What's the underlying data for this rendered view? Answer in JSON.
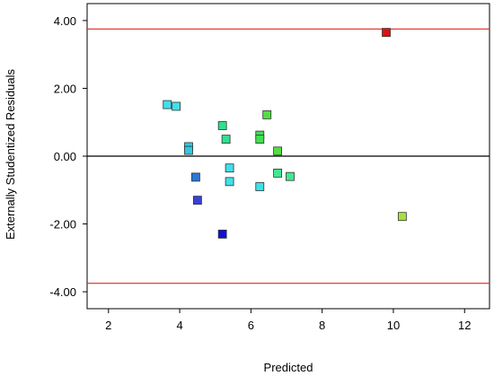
{
  "chart_data": {
    "type": "scatter",
    "title": "",
    "xlabel": "Predicted",
    "ylabel": "Externally Studentized Residuals",
    "xlim": [
      1.4,
      12.7
    ],
    "ylim": [
      -4.5,
      4.5
    ],
    "xticks": [
      2,
      4,
      6,
      8,
      10,
      12
    ],
    "xtick_labels": [
      "2",
      "4",
      "6",
      "8",
      "10",
      "12"
    ],
    "yticks": [
      4,
      2,
      0,
      -2,
      -4
    ],
    "ytick_labels": [
      "4.00",
      "2.00",
      "0.00",
      "-2.00",
      "-4.00"
    ],
    "grid": false,
    "reference_lines": [
      {
        "y": 3.75,
        "color": "#e8231f"
      },
      {
        "y": -3.75,
        "color": "#e8231f"
      },
      {
        "y": 0,
        "color": "#000000"
      }
    ],
    "points": [
      {
        "x": 9.8,
        "y": 3.65,
        "color": "#e01010"
      },
      {
        "x": 3.65,
        "y": 1.52,
        "color": "#40e0e8"
      },
      {
        "x": 3.9,
        "y": 1.47,
        "color": "#40e0e8"
      },
      {
        "x": 4.25,
        "y": 0.28,
        "color": "#30c8e0"
      },
      {
        "x": 4.25,
        "y": 0.17,
        "color": "#30c8e0"
      },
      {
        "x": 4.45,
        "y": -0.62,
        "color": "#2a78d8"
      },
      {
        "x": 4.5,
        "y": -1.3,
        "color": "#3a40d8"
      },
      {
        "x": 5.2,
        "y": 0.9,
        "color": "#30e090"
      },
      {
        "x": 5.3,
        "y": 0.5,
        "color": "#30e090"
      },
      {
        "x": 5.2,
        "y": -2.3,
        "color": "#1010d8"
      },
      {
        "x": 5.4,
        "y": -0.35,
        "color": "#40e0e8"
      },
      {
        "x": 5.4,
        "y": -0.75,
        "color": "#40e0e8"
      },
      {
        "x": 6.45,
        "y": 1.22,
        "color": "#50e040"
      },
      {
        "x": 6.25,
        "y": 0.62,
        "color": "#40e050"
      },
      {
        "x": 6.25,
        "y": 0.5,
        "color": "#40e050"
      },
      {
        "x": 6.75,
        "y": 0.15,
        "color": "#50e040"
      },
      {
        "x": 6.25,
        "y": -0.9,
        "color": "#40e0e8"
      },
      {
        "x": 6.75,
        "y": -0.5,
        "color": "#40e890"
      },
      {
        "x": 7.1,
        "y": -0.6,
        "color": "#40e890"
      },
      {
        "x": 10.25,
        "y": -1.78,
        "color": "#a8e040"
      }
    ]
  }
}
